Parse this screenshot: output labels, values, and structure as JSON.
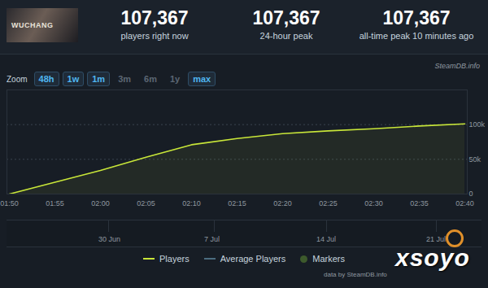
{
  "header": {
    "thumbnail_text": "WUCHANG",
    "stats": [
      {
        "value": "107,367",
        "label": "players right now"
      },
      {
        "value": "107,367",
        "label": "24-hour peak"
      },
      {
        "value": "107,367",
        "label": "all-time peak 10 minutes ago"
      }
    ]
  },
  "source_tag": "SteamDB.info",
  "zoom": {
    "label": "Zoom",
    "options": [
      "48h",
      "1w",
      "1m",
      "3m",
      "6m",
      "1y",
      "max"
    ],
    "active": [
      "48h",
      "1w",
      "1m",
      "max"
    ]
  },
  "chart_data": {
    "type": "line",
    "x": [
      "01:50",
      "01:55",
      "02:00",
      "02:05",
      "02:10",
      "02:15",
      "02:20",
      "02:25",
      "02:30",
      "02:35",
      "02:40"
    ],
    "series": [
      {
        "name": "Players",
        "color": "#c8e639",
        "values": [
          0,
          17000,
          34000,
          53000,
          71000,
          80000,
          87000,
          91000,
          94000,
          98000,
          101000
        ]
      }
    ],
    "ylim": [
      0,
      150000
    ],
    "yticks": [
      0,
      {
        "value": 50000,
        "label": "50k"
      },
      {
        "value": 100000,
        "label": "100k"
      }
    ],
    "grid": true
  },
  "navigator": {
    "labels": [
      "30 Jun",
      "7 Jul",
      "14 Jul",
      "21 Jul"
    ]
  },
  "legend_items": [
    "Average Players",
    "Markers"
  ],
  "credit": "data by SteamDB.info",
  "watermark": "xsoyo"
}
